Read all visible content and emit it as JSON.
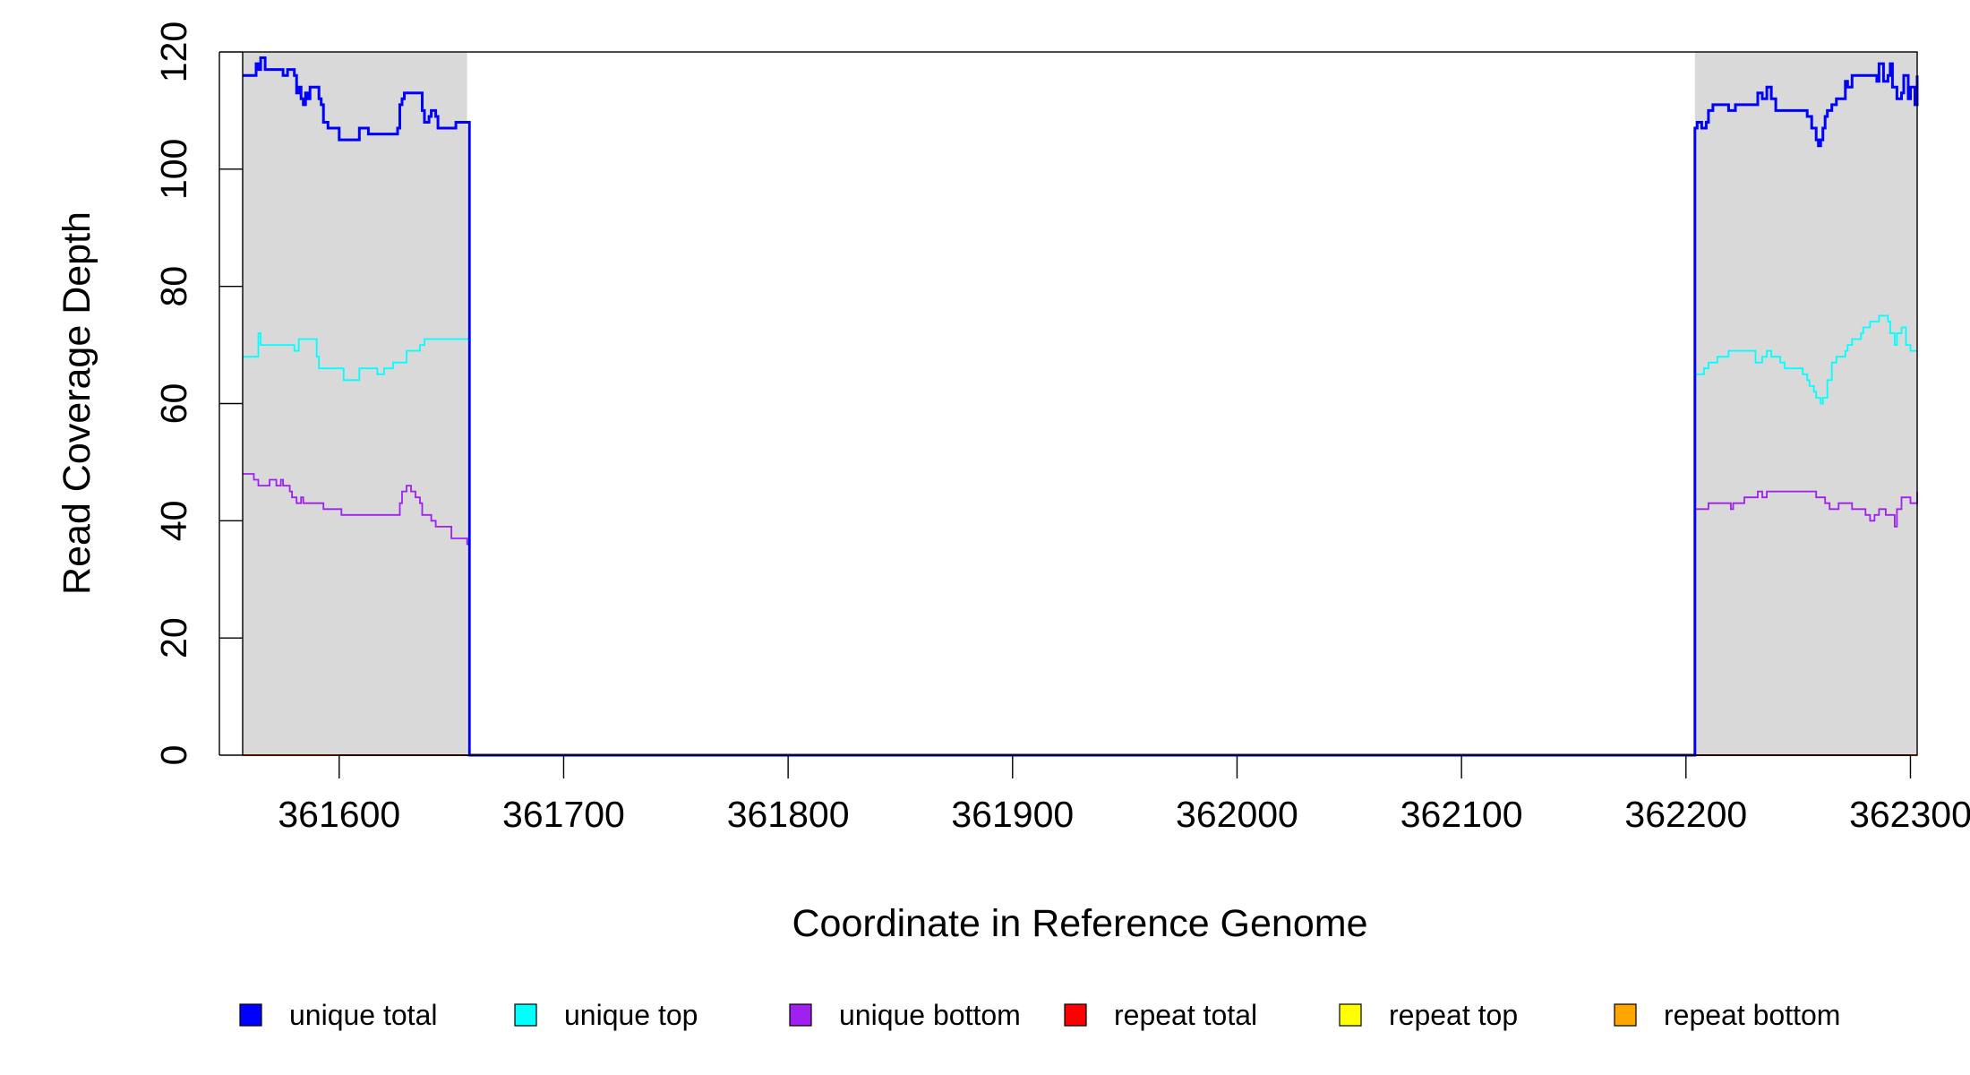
{
  "chart_data": {
    "type": "line",
    "title": "",
    "xlabel": "Coordinate in Reference Genome",
    "ylabel": "Read Coverage Depth",
    "xlim": [
      361557,
      362303
    ],
    "ylim": [
      0,
      120
    ],
    "x_ticks": [
      361600,
      361700,
      361800,
      361900,
      362000,
      362100,
      362200,
      362300
    ],
    "y_ticks": [
      0,
      20,
      40,
      60,
      80,
      100,
      120
    ],
    "grid": false,
    "legend_position": "bottom",
    "shaded_regions": [
      {
        "x_start": 361557,
        "x_end": 361657,
        "color": "#d9d9d9"
      },
      {
        "x_start": 362204,
        "x_end": 362303,
        "color": "#d9d9d9"
      }
    ],
    "series": [
      {
        "name": "unique total",
        "color": "#0000ff",
        "x": [
          361557,
          361562,
          361563,
          361564,
          361565,
          361567,
          361568,
          361575,
          361577,
          361580,
          361581,
          361582,
          361583,
          361584,
          361585,
          361586,
          361587,
          361590,
          361591,
          361592,
          361593,
          361595,
          361600,
          361602,
          361609,
          361613,
          361617,
          361626,
          361627,
          361628,
          361629,
          361631,
          361637,
          361638,
          361640,
          361641,
          361643,
          361644,
          361646,
          361652,
          361653,
          361657,
          361658,
          362203,
          362204,
          362205,
          362207,
          362209,
          362210,
          362212,
          362213,
          362219,
          362220,
          362222,
          362231,
          362232,
          362234,
          362236,
          362238,
          362240,
          362242,
          362244,
          362254,
          362256,
          362258,
          362259,
          362260,
          362261,
          362262,
          362263,
          362265,
          362267,
          362269,
          362271,
          362272,
          362274,
          362276,
          362277,
          362285,
          362286,
          362288,
          362290,
          362291,
          362292,
          362294,
          362296,
          362297,
          362299,
          362300,
          362302,
          362303
        ],
        "y": [
          116,
          116,
          118,
          117,
          119,
          117,
          117,
          116,
          117,
          116,
          113,
          114,
          112,
          111,
          113,
          112,
          114,
          114,
          112,
          111,
          108,
          107,
          105,
          105,
          107,
          106,
          106,
          107,
          111,
          112,
          113,
          113,
          110,
          108,
          109,
          110,
          109,
          107,
          107,
          108,
          108,
          108,
          0,
          0,
          107,
          108,
          107,
          108,
          110,
          111,
          111,
          110,
          110,
          111,
          111,
          113,
          112,
          114,
          112,
          110,
          110,
          110,
          109,
          107,
          105,
          104,
          105,
          107,
          109,
          110,
          111,
          112,
          112,
          115,
          114,
          116,
          116,
          116,
          115,
          118,
          115,
          116,
          118,
          114,
          112,
          113,
          116,
          112,
          114,
          111,
          116
        ]
      },
      {
        "name": "unique top",
        "color": "#00ffff",
        "x": [
          361557,
          361562,
          361564,
          361565,
          361580,
          361582,
          361586,
          361590,
          361591,
          361593,
          361602,
          361609,
          361617,
          361618,
          361620,
          361624,
          361626,
          361630,
          361636,
          361638,
          361641,
          361657,
          361658,
          362203,
          362204,
          362208,
          362210,
          362214,
          362219,
          362231,
          362232,
          362234,
          362236,
          362238,
          362240,
          362242,
          362244,
          362252,
          362254,
          362255,
          362257,
          362258,
          362260,
          362261,
          362263,
          362265,
          362267,
          362269,
          362271,
          362272,
          362274,
          362278,
          362279,
          362282,
          362286,
          362290,
          362291,
          362293,
          362294,
          362296,
          362298,
          362300,
          362303
        ],
        "y": [
          68,
          68,
          72,
          70,
          69,
          71,
          71,
          68,
          66,
          66,
          64,
          66,
          65,
          65,
          66,
          67,
          67,
          69,
          70,
          71,
          71,
          71,
          0,
          0,
          65,
          66,
          67,
          68,
          69,
          67,
          67,
          68,
          69,
          68,
          68,
          67,
          66,
          65,
          64,
          63,
          62,
          61,
          60,
          61,
          64,
          67,
          68,
          68,
          69,
          70,
          71,
          72,
          73,
          74,
          75,
          74,
          72,
          70,
          72,
          73,
          70,
          69,
          69
        ]
      },
      {
        "name": "unique bottom",
        "color": "#a020f0",
        "x": [
          361557,
          361561,
          361562,
          361564,
          361569,
          361572,
          361574,
          361575,
          361578,
          361579,
          361581,
          361583,
          361584,
          361591,
          361593,
          361601,
          361627,
          361628,
          361630,
          361632,
          361634,
          361636,
          361637,
          361641,
          361643,
          361650,
          361657,
          361658,
          362203,
          362204,
          362210,
          362211,
          362220,
          362221,
          362225,
          362226,
          362231,
          362232,
          362234,
          362236,
          362237,
          362240,
          362244,
          362258,
          362262,
          362264,
          362268,
          362270,
          362272,
          362274,
          362278,
          362280,
          362282,
          362284,
          362286,
          362289,
          362293,
          362294,
          362296,
          362298,
          362300,
          362303
        ],
        "y": [
          48,
          48,
          47,
          46,
          47,
          46,
          47,
          46,
          45,
          44,
          43,
          44,
          43,
          43,
          42,
          41,
          43,
          45,
          46,
          45,
          44,
          43,
          41,
          40,
          39,
          37,
          36,
          0,
          0,
          42,
          43,
          43,
          42,
          43,
          43,
          44,
          44,
          45,
          44,
          45,
          45,
          45,
          45,
          44,
          43,
          42,
          43,
          43,
          43,
          42,
          42,
          41,
          40,
          41,
          42,
          41,
          39,
          42,
          44,
          44,
          43,
          45
        ]
      },
      {
        "name": "repeat total",
        "color": "#ff0000",
        "x": [
          361557,
          362303
        ],
        "y": [
          0,
          0
        ]
      },
      {
        "name": "repeat top",
        "color": "#ffff00",
        "x": [
          361557,
          362303
        ],
        "y": [
          0,
          0
        ]
      },
      {
        "name": "repeat bottom",
        "color": "#ffa500",
        "x": [
          361557,
          362303
        ],
        "y": [
          0,
          0
        ]
      }
    ]
  }
}
